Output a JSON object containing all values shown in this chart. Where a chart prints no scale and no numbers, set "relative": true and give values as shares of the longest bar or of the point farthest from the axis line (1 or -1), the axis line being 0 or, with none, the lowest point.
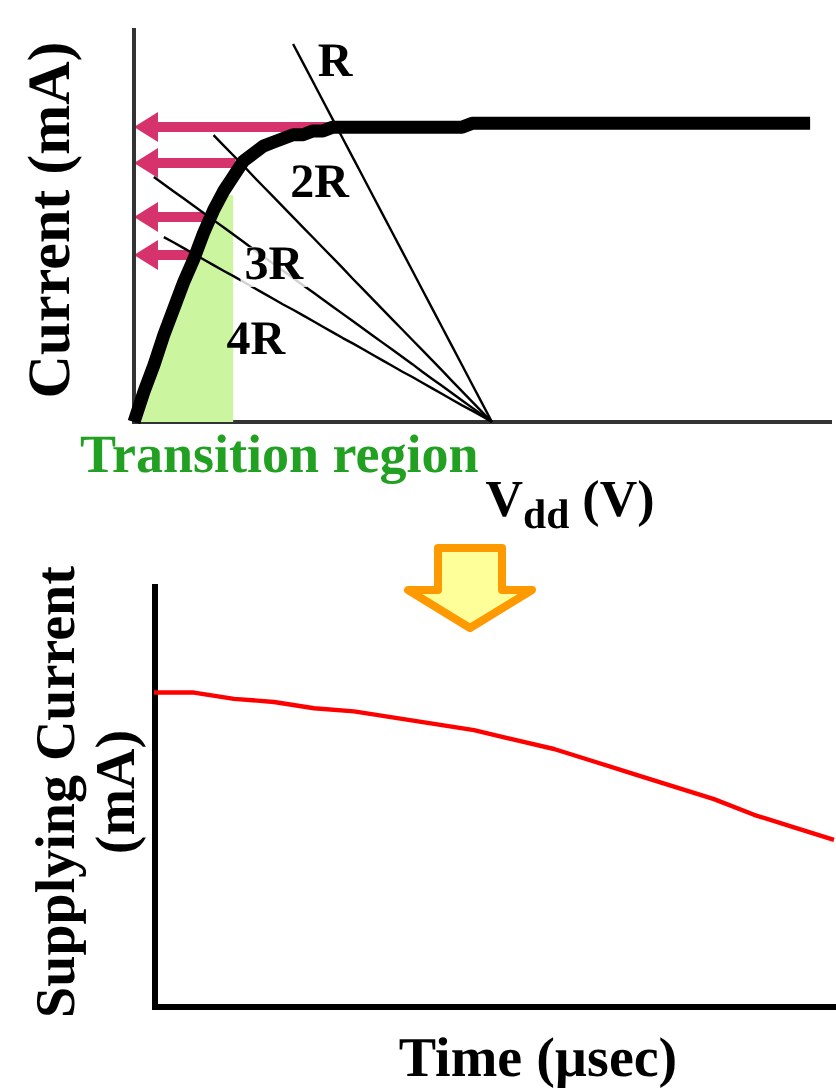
{
  "chart_data": [
    {
      "type": "line",
      "xlabel": "V$_{dd}$ (V)",
      "ylabel": "Current (mA)",
      "relative": true,
      "categories": [
        null,
        null,
        null,
        null,
        null,
        null,
        null,
        null,
        null,
        null,
        null,
        null,
        null,
        null,
        null,
        null,
        null,
        null,
        null,
        null,
        null,
        null,
        null,
        null,
        null,
        null,
        null,
        null,
        null,
        null,
        null,
        null,
        null,
        null,
        null,
        null,
        null,
        null,
        null,
        null,
        null,
        null,
        null,
        null,
        null,
        null,
        null,
        null,
        null,
        null,
        null,
        null,
        null,
        null,
        null,
        null,
        null,
        null,
        null,
        null,
        null,
        null,
        null,
        null,
        null,
        null,
        null,
        null,
        null,
        null,
        null
      ],
      "series": [
        {
          "name": "Transition region",
          "type": "area",
          "color": "#ccf5a0",
          "values": [
            0,
            0.08,
            0.15,
            0.23,
            0.3,
            0.37,
            0.43,
            0.5,
            0.56,
            0.6,
            0.6,
            null,
            null,
            null,
            null,
            null,
            null,
            null,
            null,
            null,
            null,
            null,
            null,
            null,
            null,
            null,
            null,
            null,
            null,
            null,
            null,
            null,
            null,
            null,
            null,
            null,
            null,
            null,
            null,
            null,
            null,
            null,
            null,
            null,
            null,
            null,
            null,
            null,
            null,
            null,
            null,
            null,
            null,
            null,
            null,
            null,
            null,
            null,
            null,
            null,
            null,
            null,
            null,
            null,
            null,
            null,
            null,
            null,
            null,
            null,
            null
          ]
        },
        {
          "name": "R",
          "color": "#000000",
          "values": [
            null,
            null,
            null,
            null,
            null,
            null,
            null,
            null,
            null,
            null,
            null,
            null,
            null,
            null,
            null,
            null,
            1,
            0.95,
            0.9,
            0.85,
            0.8,
            0.75,
            0.7,
            0.65,
            0.6,
            0.55,
            0.5,
            0.45,
            0.4,
            0.35,
            0.3,
            0.25,
            0.2,
            0.15,
            0.1,
            0.05,
            0,
            null,
            null,
            null,
            null,
            null,
            null,
            null,
            null,
            null,
            null,
            null,
            null,
            null,
            null,
            null,
            null,
            null,
            null,
            null,
            null,
            null,
            null,
            null,
            null,
            null,
            null,
            null,
            null,
            null,
            null,
            null,
            null,
            null,
            null
          ]
        },
        {
          "name": "2R",
          "color": "#000000",
          "values": [
            null,
            null,
            null,
            null,
            null,
            null,
            null,
            null,
            0.759,
            0.732,
            0.705,
            0.678,
            0.65,
            0.623,
            0.596,
            0.569,
            0.542,
            0.515,
            0.488,
            0.461,
            0.434,
            0.407,
            0.379,
            0.352,
            0.325,
            0.298,
            0.271,
            0.244,
            0.217,
            0.19,
            0.163,
            0.136,
            0.108,
            0.081,
            0.054,
            0.027,
            0,
            null,
            null,
            null,
            null,
            null,
            null,
            null,
            null,
            null,
            null,
            null,
            null,
            null,
            null,
            null,
            null,
            null,
            null,
            null,
            null,
            null,
            null,
            null,
            null,
            null,
            null,
            null,
            null,
            null,
            null,
            null,
            null,
            null,
            null
          ]
        },
        {
          "name": "3R",
          "color": "#000000",
          "values": [
            null,
            null,
            0.648,
            0.629,
            0.61,
            0.591,
            0.572,
            0.553,
            0.534,
            0.515,
            0.496,
            0.477,
            0.457,
            0.438,
            0.419,
            0.4,
            0.381,
            0.362,
            0.343,
            0.324,
            0.305,
            0.286,
            0.267,
            0.248,
            0.229,
            0.21,
            0.191,
            0.172,
            0.153,
            0.133,
            0.114,
            0.095,
            0.076,
            0.057,
            0.038,
            0.019,
            0,
            null,
            null,
            null,
            null,
            null,
            null,
            null,
            null,
            null,
            null,
            null,
            null,
            null,
            null,
            null,
            null,
            null,
            null,
            null,
            null,
            null,
            null,
            null,
            null,
            null,
            null,
            null,
            null,
            null,
            null,
            null,
            null,
            null,
            null
          ]
        },
        {
          "name": "4R",
          "color": "#000000",
          "values": [
            null,
            null,
            null,
            0.489,
            0.475,
            0.46,
            0.445,
            0.43,
            0.415,
            0.4,
            0.386,
            0.371,
            0.356,
            0.341,
            0.326,
            0.311,
            0.297,
            0.282,
            0.267,
            0.252,
            0.237,
            0.222,
            0.208,
            0.193,
            0.178,
            0.163,
            0.148,
            0.133,
            0.119,
            0.104,
            0.089,
            0.074,
            0.059,
            0.044,
            0.03,
            0.015,
            0,
            null,
            null,
            null,
            null,
            null,
            null,
            null,
            null,
            null,
            null,
            null,
            null,
            null,
            null,
            null,
            null,
            null,
            null,
            null,
            null,
            null,
            null,
            null,
            null,
            null,
            null,
            null,
            null,
            null,
            null,
            null,
            null,
            null,
            null
          ]
        },
        {
          "color": "#000000",
          "values": [
            0,
            0.08,
            0.15,
            0.23,
            0.3,
            0.37,
            0.43,
            0.5,
            0.56,
            0.61,
            0.65,
            0.69,
            0.71,
            0.73,
            0.74,
            0.75,
            0.76,
            0.76,
            0.77,
            0.77,
            0.78,
            0.78,
            0.78,
            0.78,
            0.78,
            0.78,
            0.78,
            0.78,
            0.78,
            0.78,
            0.78,
            0.78,
            0.78,
            0.78,
            0.79,
            0.79,
            0.79,
            0.79,
            0.79,
            0.79,
            0.79,
            0.79,
            0.79,
            0.79,
            0.79,
            0.79,
            0.79,
            0.79,
            0.79,
            0.79,
            0.79,
            0.79,
            0.79,
            0.79,
            0.79,
            0.79,
            0.79,
            0.79,
            0.79,
            0.79,
            0.79,
            0.79,
            0.79,
            0.79,
            0.79,
            0.79,
            0.79,
            0.79,
            0.79,
            null,
            null
          ]
        }
      ]
    },
    {
      "type": "line",
      "xlabel": "Time (µsec)",
      "ylabel": "Supplying Current (mA)",
      "relative": true,
      "categories": [
        null,
        null,
        null,
        null,
        null,
        null,
        null,
        null,
        null,
        null,
        null,
        null,
        null,
        null,
        null,
        null,
        null,
        null
      ],
      "series": [
        {
          "color": "#ff0000",
          "values": [
            1,
            1,
            0.98,
            0.97,
            0.95,
            0.94,
            0.92,
            0.9,
            0.88,
            0.85,
            0.82,
            0.78,
            0.74,
            0.7,
            0.66,
            0.61,
            0.57,
            0.53
          ]
        }
      ]
    }
  ]
}
